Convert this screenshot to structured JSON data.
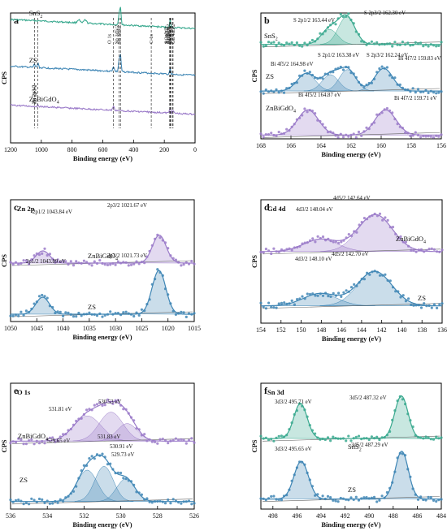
{
  "figure": {
    "common_xlabel": "Binding energy (eV)",
    "common_ylabel": "CPS"
  },
  "chart_data": [
    {
      "id": "a",
      "type": "line",
      "title": "",
      "xlabel": "Binding energy (eV)",
      "ylabel": "CPS",
      "xlim": [
        1200,
        0
      ],
      "xticks": [
        1200,
        1000,
        800,
        600,
        400,
        200,
        0
      ],
      "series": [
        {
          "name": "SnS2",
          "label": "SnS",
          "sub": "2",
          "color": "#3aa98f",
          "offset": 0.12,
          "peaks": [
            [
              485,
              0.55,
              4
            ],
            [
              494,
              0.35,
              4
            ],
            [
              162,
              0.25,
              3
            ],
            [
              715,
              0.1,
              8
            ],
            [
              757,
              0.1,
              8
            ]
          ]
        },
        {
          "name": "ZS",
          "label": "ZS",
          "sub": "",
          "color": "#3f86b5",
          "offset": 0.48,
          "peaks": [
            [
              1022,
              0.15,
              4
            ],
            [
              1045,
              0.1,
              4
            ],
            [
              485,
              0.5,
              4
            ],
            [
              494,
              0.35,
              4
            ],
            [
              162,
              0.2,
              3
            ],
            [
              531,
              0.15,
              5
            ]
          ]
        },
        {
          "name": "ZnBiGdO4",
          "label": "ZnBiGdO",
          "sub": "4",
          "color": "#9b7bc9",
          "offset": 0.78,
          "peaks": [
            [
              531,
              0.12,
              5
            ],
            [
              159,
              0.14,
              3
            ],
            [
              165,
              0.1,
              3
            ],
            [
              143,
              0.08,
              4
            ],
            [
              1021,
              0.05,
              5
            ]
          ]
        }
      ],
      "annotations": [
        {
          "text": "Zn 2p3/2",
          "x": 1022
        },
        {
          "text": "Zn 2p1/2",
          "x": 1045
        },
        {
          "text": "O 1s",
          "x": 531
        },
        {
          "text": "Sn 3d3/2",
          "x": 494
        },
        {
          "text": "Sn 3d5/2",
          "x": 485
        },
        {
          "text": "C 1s",
          "x": 285
        },
        {
          "text": "S 2p3/2",
          "x": 162
        },
        {
          "text": "S 2p1/2",
          "x": 163
        },
        {
          "text": "Gd 4d5/2",
          "x": 148
        },
        {
          "text": "Gd 4d3/2",
          "x": 143
        },
        {
          "text": "Bi 4f7/2",
          "x": 159
        },
        {
          "text": "Bi 4f5/2",
          "x": 165
        }
      ]
    },
    {
      "id": "b",
      "type": "line",
      "title": "",
      "xlabel": "Binding energy (eV)",
      "ylabel": "CPS",
      "xlim": [
        168,
        156
      ],
      "xticks": [
        168,
        166,
        164,
        162,
        160,
        158,
        156
      ],
      "series": [
        {
          "name": "SnS2",
          "label": "SnS",
          "sub": "2",
          "color": "#3aa98f",
          "base": 0.25,
          "fit": true,
          "peaks": [
            [
              162.3,
              0.22,
              0.55
            ],
            [
              163.44,
              0.12,
              0.55
            ]
          ]
        },
        {
          "name": "ZS",
          "label": "ZS",
          "sub": "",
          "color": "#3f86b5",
          "base": 0.62,
          "fit": true,
          "peaks": [
            [
              164.98,
              0.14,
              0.6
            ],
            [
              163.38,
              0.13,
              0.55
            ],
            [
              162.24,
              0.17,
              0.55
            ],
            [
              159.83,
              0.18,
              0.6
            ]
          ]
        },
        {
          "name": "ZnBiGdO4",
          "label": "ZnBiGdO",
          "sub": "4",
          "color": "#9b7bc9",
          "base": 0.97,
          "fit": true,
          "peaks": [
            [
              164.87,
              0.2,
              0.7
            ],
            [
              159.71,
              0.2,
              0.7
            ]
          ]
        }
      ],
      "annotations": [
        {
          "text": "S 2p1/2 163.44 eV",
          "x": 163.44
        },
        {
          "text": "S 2p3/2 162.30 eV",
          "x": 162.3
        },
        {
          "text": "Bi 4f5/2 164.98 eV",
          "x": 164.98
        },
        {
          "text": "S 2p1/2 163.38 eV",
          "x": 163.38
        },
        {
          "text": "S 2p3/2 162.24 eV",
          "x": 162.24
        },
        {
          "text": "Bi 4f7/2 159.83 eV",
          "x": 159.83
        },
        {
          "text": "Bi 4f5/2 164.87 eV",
          "x": 164.87
        },
        {
          "text": "Bi 4f7/2 159.71 eV",
          "x": 159.71
        }
      ]
    },
    {
      "id": "c",
      "type": "line",
      "title": "Zn 2p",
      "xlabel": "Binding energy (eV)",
      "ylabel": "CPS",
      "xlim": [
        1050,
        1015
      ],
      "xticks": [
        1050,
        1045,
        1040,
        1035,
        1030,
        1025,
        1020,
        1015
      ],
      "series": [
        {
          "name": "ZnBiGdO4",
          "label": "ZnBiGdO",
          "sub": "4",
          "color": "#9b7bc9",
          "base": 0.52,
          "fit": true,
          "peaks": [
            [
              1043.84,
              0.1,
              1.3
            ],
            [
              1021.67,
              0.23,
              1.3
            ]
          ]
        },
        {
          "name": "ZS",
          "label": "ZS",
          "sub": "",
          "color": "#3f86b5",
          "base": 0.94,
          "fit": true,
          "peaks": [
            [
              1043.89,
              0.14,
              1.3
            ],
            [
              1021.73,
              0.36,
              1.3
            ]
          ]
        }
      ],
      "annotations": [
        {
          "text": "2p1/2 1043.84 eV",
          "x": 1043.84
        },
        {
          "text": "2p3/2 1021.67 eV",
          "x": 1021.67
        },
        {
          "text": "2p1/2 1043.89 eV",
          "x": 1043.89
        },
        {
          "text": "2p3/2 1021.73 eV",
          "x": 1021.73
        }
      ]
    },
    {
      "id": "d",
      "type": "line",
      "title": "Gd 4d",
      "xlabel": "Binding energy (eV)",
      "ylabel": "CPS",
      "xlim": [
        154,
        136
      ],
      "xticks": [
        154,
        152,
        150,
        148,
        146,
        144,
        142,
        140,
        138,
        136
      ],
      "series": [
        {
          "name": "ZnBiGdO4",
          "label": "ZnBiGdO",
          "sub": "4",
          "color": "#9b7bc9",
          "base": 0.42,
          "fit": true,
          "peaks": [
            [
              148.04,
              0.1,
              1.7
            ],
            [
              142.64,
              0.3,
              1.7
            ]
          ]
        },
        {
          "name": "ZS",
          "label": "ZS",
          "sub": "",
          "color": "#3f86b5",
          "base": 0.86,
          "fit": true,
          "peaks": [
            [
              148.1,
              0.1,
              1.7
            ],
            [
              142.7,
              0.28,
              1.7
            ]
          ]
        }
      ],
      "annotations": [
        {
          "text": "4d3/2 148.04 eV",
          "x": 148.04
        },
        {
          "text": "4d5/2 142.64 eV",
          "x": 142.64
        },
        {
          "text": "4d3/2 148.10 eV",
          "x": 148.1
        },
        {
          "text": "4d5/2 142.70 eV",
          "x": 142.7
        }
      ]
    },
    {
      "id": "e",
      "type": "line",
      "title": "O 1s",
      "xlabel": "Binding energy (eV)",
      "ylabel": "CPS",
      "xlim": [
        536,
        526
      ],
      "xticks": [
        536,
        534,
        532,
        530,
        528,
        526
      ],
      "series": [
        {
          "name": "ZnBiGdO4",
          "label": "ZnBiGdO",
          "sub": "4",
          "color": "#9b7bc9",
          "base": 0.46,
          "fit": true,
          "peaks": [
            [
              531.81,
              0.2,
              0.75
            ],
            [
              530.53,
              0.23,
              0.65
            ],
            [
              529.65,
              0.14,
              0.55
            ]
          ]
        },
        {
          "name": "ZS",
          "label": "ZS",
          "sub": "",
          "color": "#3f86b5",
          "base": 0.94,
          "fit": true,
          "peaks": [
            [
              531.83,
              0.25,
              0.55
            ],
            [
              530.91,
              0.28,
              0.5
            ],
            [
              529.73,
              0.18,
              0.5
            ]
          ]
        }
      ],
      "annotations": [
        {
          "text": "531.81 eV",
          "x": 531.81
        },
        {
          "text": "530.53 eV",
          "x": 530.53
        },
        {
          "text": "529.65 eV",
          "x": 529.65
        },
        {
          "text": "531.83 eV",
          "x": 531.83
        },
        {
          "text": "530.91 eV",
          "x": 530.91
        },
        {
          "text": "529.73 eV",
          "x": 529.73
        }
      ]
    },
    {
      "id": "f",
      "type": "line",
      "title": "Sn 3d",
      "xlabel": "Binding energy (eV)",
      "ylabel": "CPS",
      "xlim": [
        499,
        484
      ],
      "xticks": [
        498,
        496,
        494,
        492,
        490,
        488,
        486,
        484
      ],
      "series": [
        {
          "name": "SnS2",
          "label": "SnS",
          "sub": "2",
          "color": "#3aa98f",
          "base": 0.44,
          "fit": true,
          "peaks": [
            [
              495.71,
              0.28,
              0.55
            ],
            [
              487.32,
              0.34,
              0.55
            ]
          ]
        },
        {
          "name": "ZS",
          "label": "ZS",
          "sub": "",
          "color": "#3f86b5",
          "base": 0.92,
          "fit": true,
          "peaks": [
            [
              495.65,
              0.3,
              0.6
            ],
            [
              487.29,
              0.38,
              0.55
            ]
          ]
        }
      ],
      "annotations": [
        {
          "text": "3d3/2 495.71 eV",
          "x": 495.71
        },
        {
          "text": "3d5/2 487.32 eV",
          "x": 487.32
        },
        {
          "text": "3d3/2 495.65 eV",
          "x": 495.65
        },
        {
          "text": "3d5/2 487.29 eV",
          "x": 487.29
        }
      ]
    }
  ]
}
